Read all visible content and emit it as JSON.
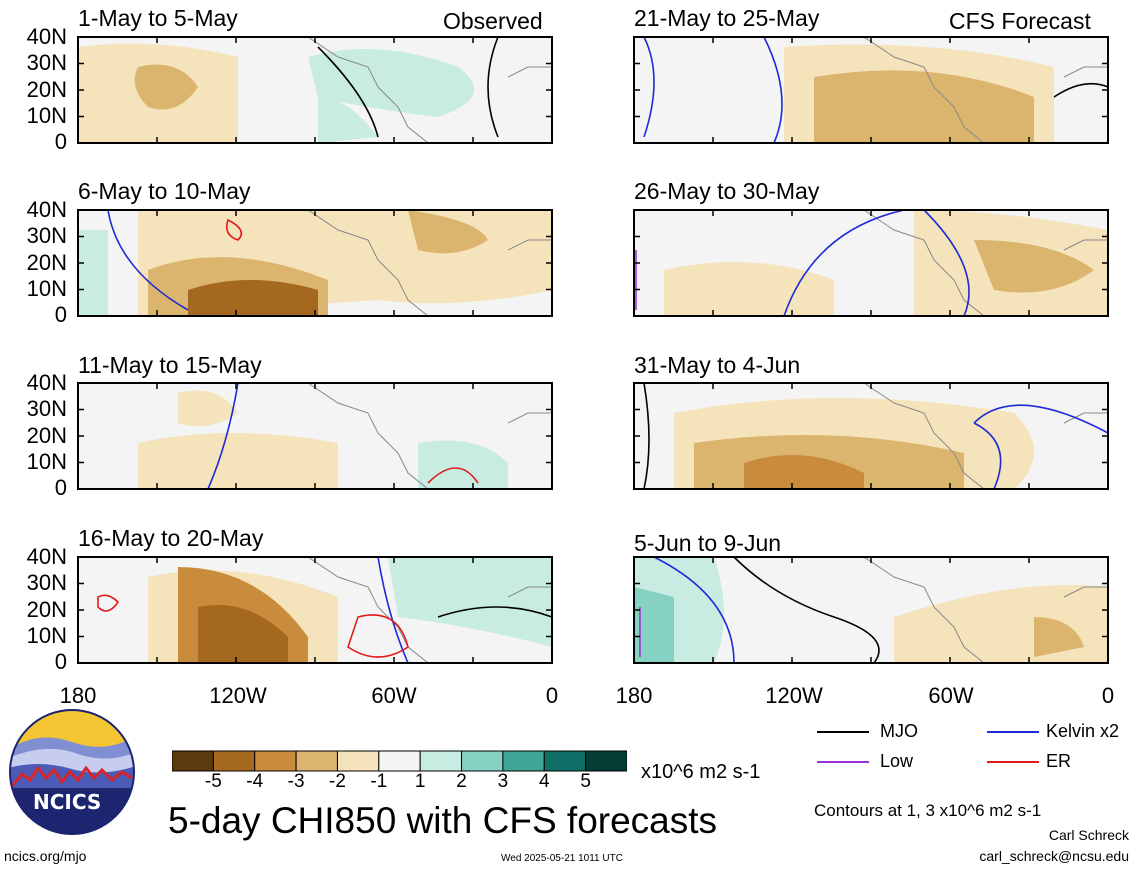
{
  "panels_left": [
    {
      "title": "1-May to 5-May",
      "label": "Observed"
    },
    {
      "title": "6-May to 10-May",
      "label": ""
    },
    {
      "title": "11-May to 15-May",
      "label": ""
    },
    {
      "title": "16-May to 20-May",
      "label": ""
    }
  ],
  "panels_right": [
    {
      "title": "21-May to 25-May",
      "label": "CFS Forecast"
    },
    {
      "title": "26-May to 30-May",
      "label": ""
    },
    {
      "title": "31-May to 4-Jun",
      "label": ""
    },
    {
      "title": "5-Jun to 9-Jun",
      "label": ""
    }
  ],
  "lat_ticks": [
    "40N",
    "30N",
    "20N",
    "10N",
    "0"
  ],
  "lon_ticks": [
    "180",
    "120W",
    "60W",
    "0"
  ],
  "colorbar": {
    "ticks": [
      "-5",
      "-4",
      "-3",
      "-2",
      "-1",
      "1",
      "2",
      "3",
      "4",
      "5"
    ],
    "colors": [
      "#5a3a0e",
      "#a4681e",
      "#c88c3c",
      "#dbb56e",
      "#f5e3bc",
      "#f4f4f4",
      "#c8ece2",
      "#86d2c2",
      "#3fa596",
      "#0f6f66",
      "#053d35"
    ],
    "units": "x10^6 m2 s-1"
  },
  "legend": {
    "mjo": {
      "label": "MJO",
      "color": "#000000"
    },
    "kelvin": {
      "label": "Kelvin x2",
      "color": "#1f2ad6"
    },
    "low": {
      "label": "Low",
      "color": "#9b34d8"
    },
    "er": {
      "label": "ER",
      "color": "#e01b1b"
    }
  },
  "main_title": "5-day CHI850 with CFS forecasts",
  "contours_note": "Contours at 1, 3 x10^6 m2 s-1",
  "author": "Carl Schreck",
  "email": "carl_schreck@ncsu.edu",
  "website": "ncics.org/mjo",
  "timestamp": "Wed 2025-05-21 1011 UTC",
  "logo_text": "NCICS"
}
